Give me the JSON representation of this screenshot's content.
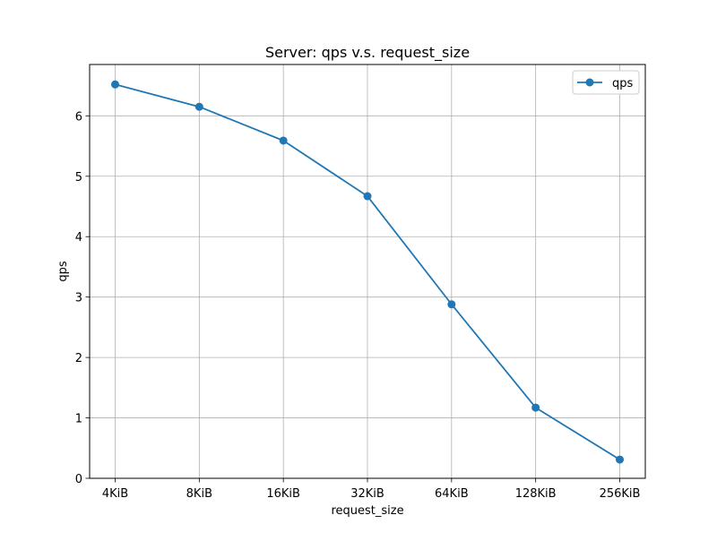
{
  "chart_data": {
    "type": "line",
    "title": "Server: qps v.s. request_size",
    "xlabel": "request_size",
    "ylabel": "qps",
    "categories": [
      "4KiB",
      "8KiB",
      "16KiB",
      "32KiB",
      "64KiB",
      "128KiB",
      "256KiB"
    ],
    "series": [
      {
        "name": "qps",
        "values": [
          6.52,
          6.15,
          5.59,
          4.67,
          2.88,
          1.17,
          0.31
        ],
        "color": "#1f77b4",
        "marker": "circle"
      }
    ],
    "ylim": [
      0,
      6.85
    ],
    "yticks": [
      "0",
      "1",
      "2",
      "3",
      "4",
      "5",
      "6"
    ],
    "grid": true,
    "legend_position": "top-right"
  }
}
